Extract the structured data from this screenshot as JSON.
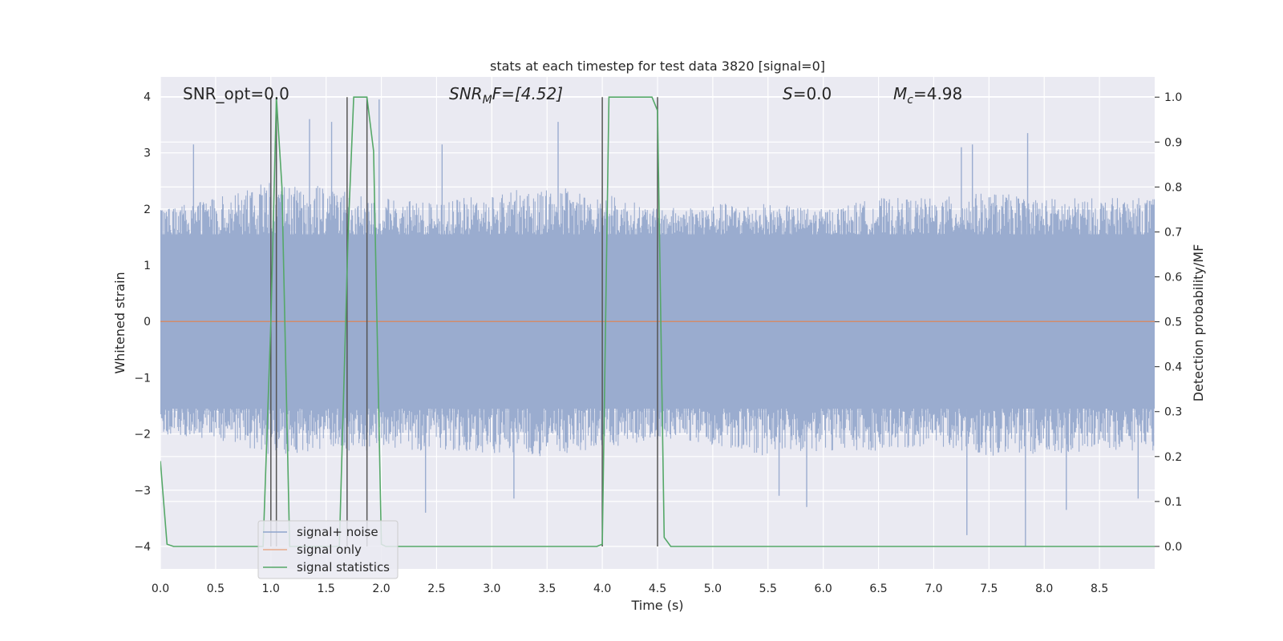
{
  "chart_data": {
    "type": "line",
    "title": "stats at each timestep for test data 3820 [signal=0]",
    "xlabel": "Time (s)",
    "ylabel": "Whitened strain",
    "ylabel_right": "Detection probability/MF",
    "xlim": [
      0.0,
      9.0
    ],
    "ylim": [
      -4.4,
      4.35
    ],
    "ylim_right": [
      -0.05,
      1.045
    ],
    "x_ticks": [
      0.0,
      0.5,
      1.0,
      1.5,
      2.0,
      2.5,
      3.0,
      3.5,
      4.0,
      4.5,
      5.0,
      5.5,
      6.0,
      6.5,
      7.0,
      7.5,
      8.0,
      8.5
    ],
    "x_tick_labels": [
      "0.0",
      "0.5",
      "1.0",
      "1.5",
      "2.0",
      "2.5",
      "3.0",
      "3.5",
      "4.0",
      "4.5",
      "5.0",
      "5.5",
      "6.0",
      "6.5",
      "7.0",
      "7.5",
      "8.0",
      "8.5"
    ],
    "y_ticks": [
      -4,
      -3,
      -2,
      -1,
      0,
      1,
      2,
      3,
      4
    ],
    "y_tick_labels": [
      "−4",
      "−3",
      "−2",
      "−1",
      "0",
      "1",
      "2",
      "3",
      "4"
    ],
    "y2_ticks": [
      0.0,
      0.1,
      0.2,
      0.3,
      0.4,
      0.5,
      0.6,
      0.7,
      0.8,
      0.9,
      1.0
    ],
    "y2_tick_labels": [
      "0.0",
      "0.1",
      "0.2",
      "0.3",
      "0.4",
      "0.5",
      "0.6",
      "0.7",
      "0.8",
      "0.9",
      "1.0"
    ],
    "grid": true,
    "legend_position": "lower-left",
    "annotations": {
      "snr_opt": "SNR_opt=0.0",
      "snr_mf_main": "SNR",
      "snr_mf_sub": "M",
      "snr_mf_rest": "F=[4.52]",
      "s_main": "S",
      "s_rest": "=0.0",
      "mc_main": "M",
      "mc_sub": "c",
      "mc_rest": "=4.98"
    },
    "series": [
      {
        "name": "signal+ noise",
        "color": "#4c72b0",
        "style": "noise",
        "envelope_upper": [
          [
            0.0,
            2.0
          ],
          [
            0.5,
            2.2
          ],
          [
            1.0,
            2.5
          ],
          [
            1.5,
            2.4
          ],
          [
            2.0,
            2.2
          ],
          [
            2.5,
            2.1
          ],
          [
            3.0,
            2.3
          ],
          [
            3.5,
            2.4
          ],
          [
            4.0,
            2.3
          ],
          [
            4.5,
            2.0
          ],
          [
            5.0,
            2.1
          ],
          [
            5.5,
            2.1
          ],
          [
            6.0,
            2.0
          ],
          [
            6.5,
            2.2
          ],
          [
            7.0,
            2.2
          ],
          [
            7.5,
            2.3
          ],
          [
            8.0,
            2.2
          ],
          [
            8.5,
            2.2
          ],
          [
            9.0,
            2.2
          ]
        ],
        "envelope_lower": [
          [
            0.0,
            -2.0
          ],
          [
            0.5,
            -2.1
          ],
          [
            1.0,
            -2.4
          ],
          [
            1.5,
            -2.3
          ],
          [
            2.0,
            -2.3
          ],
          [
            2.5,
            -2.3
          ],
          [
            3.0,
            -2.4
          ],
          [
            3.5,
            -2.4
          ],
          [
            4.0,
            -2.3
          ],
          [
            4.5,
            -2.1
          ],
          [
            5.0,
            -2.2
          ],
          [
            5.5,
            -2.4
          ],
          [
            6.0,
            -2.3
          ],
          [
            6.5,
            -2.3
          ],
          [
            7.0,
            -2.2
          ],
          [
            7.5,
            -2.4
          ],
          [
            8.0,
            -2.4
          ],
          [
            8.5,
            -2.3
          ],
          [
            9.0,
            -2.3
          ]
        ],
        "peaks": [
          [
            0.3,
            3.15
          ],
          [
            1.05,
            2.9
          ],
          [
            1.35,
            3.6
          ],
          [
            1.55,
            3.55
          ],
          [
            1.98,
            3.95
          ],
          [
            2.55,
            3.15
          ],
          [
            3.6,
            3.55
          ],
          [
            7.25,
            3.1
          ],
          [
            7.35,
            3.15
          ],
          [
            7.85,
            3.35
          ]
        ],
        "troughs": [
          [
            2.4,
            -3.4
          ],
          [
            3.2,
            -3.15
          ],
          [
            5.6,
            -3.1
          ],
          [
            5.85,
            -3.3
          ],
          [
            7.3,
            -3.8
          ],
          [
            7.83,
            -4.0
          ],
          [
            8.2,
            -3.35
          ],
          [
            8.85,
            -3.15
          ]
        ]
      },
      {
        "name": "signal only",
        "color": "#dd8452",
        "style": "line",
        "points": [
          [
            0.0,
            0.0
          ],
          [
            9.0,
            0.0
          ]
        ]
      },
      {
        "name": "signal statistics",
        "color": "#55a868",
        "style": "line",
        "axis": "right",
        "points": [
          [
            0.0,
            0.19
          ],
          [
            0.06,
            0.005
          ],
          [
            0.12,
            0.0
          ],
          [
            0.93,
            0.0
          ],
          [
            1.0,
            0.5
          ],
          [
            1.05,
            1.0
          ],
          [
            1.1,
            0.8
          ],
          [
            1.17,
            0.0
          ],
          [
            1.62,
            0.0
          ],
          [
            1.7,
            0.7
          ],
          [
            1.75,
            1.0
          ],
          [
            1.87,
            1.0
          ],
          [
            1.93,
            0.88
          ],
          [
            2.0,
            0.005
          ],
          [
            2.04,
            0.0
          ],
          [
            3.95,
            0.0
          ],
          [
            4.0,
            0.005
          ],
          [
            4.06,
            1.0
          ],
          [
            4.45,
            1.0
          ],
          [
            4.5,
            0.97
          ],
          [
            4.56,
            0.02
          ],
          [
            4.62,
            0.0
          ],
          [
            9.0,
            0.0
          ]
        ]
      }
    ],
    "vertical_markers": [
      1.0,
      1.05,
      1.69,
      1.87,
      4.0,
      4.5
    ]
  }
}
